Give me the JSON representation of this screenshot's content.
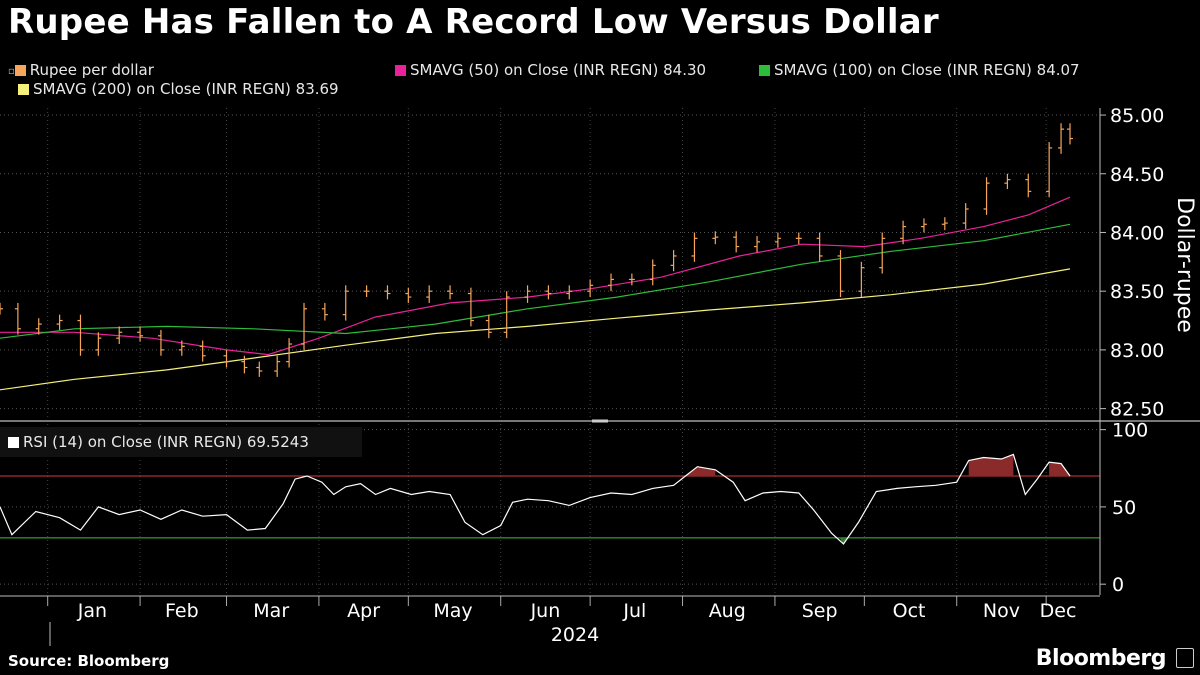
{
  "title": "Rupee Has Fallen to A Record Low Versus Dollar",
  "legend": {
    "price": "Rupee per dollar",
    "sma50": "SMAVG (50)  on Close (INR REGN) 84.30",
    "sma100": "SMAVG (100)  on Close (INR REGN) 84.07",
    "sma200": "SMAVG (200)  on Close (INR REGN) 83.69",
    "rsi": "RSI (14)  on Close (INR REGN) 69.5243"
  },
  "colors": {
    "price": "#f6a55a",
    "sma50": "#e8229a",
    "sma100": "#2dbd3a",
    "sma200": "#f5f07a",
    "rsi": "#ffffff",
    "overbought": "#d63a3a",
    "oversold": "#3fbf3f",
    "overbought_fill": "#8a2a2a"
  },
  "footer": {
    "source": "Source: Bloomberg",
    "brand": "Bloomberg"
  },
  "chart_data": [
    {
      "type": "line",
      "title": "Rupee Has Fallen to A Record Low Versus Dollar",
      "ylabel": "Dollar-rupee",
      "xlabel": "2024",
      "ylim": [
        82.42,
        85.06
      ],
      "yticks": [
        "82.50",
        "83.00",
        "83.50",
        "84.00",
        "84.50",
        "85.00"
      ],
      "xticks": [
        "Jan",
        "Feb",
        "Mar",
        "Apr",
        "May",
        "Jun",
        "Jul",
        "Aug",
        "Sep",
        "Oct",
        "Nov",
        "Dec"
      ],
      "x_start": "2023-12-16",
      "x_end": "2024-12-09",
      "grid": true,
      "legend_position": "top-left",
      "series": [
        {
          "name": "Rupee per dollar",
          "style": "bars",
          "points": [
            [
              "2023-12-16",
              83.35
            ],
            [
              "2023-12-22",
              83.18
            ],
            [
              "2023-12-29",
              83.22
            ],
            [
              "2024-01-05",
              83.25
            ],
            [
              "2024-01-12",
              83.0
            ],
            [
              "2024-01-18",
              83.1
            ],
            [
              "2024-01-25",
              83.15
            ],
            [
              "2024-02-01",
              83.12
            ],
            [
              "2024-02-08",
              83.0
            ],
            [
              "2024-02-15",
              83.03
            ],
            [
              "2024-02-22",
              82.95
            ],
            [
              "2024-03-01",
              82.9
            ],
            [
              "2024-03-07",
              82.85
            ],
            [
              "2024-03-12",
              82.82
            ],
            [
              "2024-03-18",
              82.9
            ],
            [
              "2024-03-22",
              83.05
            ],
            [
              "2024-03-27",
              83.35
            ],
            [
              "2024-04-03",
              83.3
            ],
            [
              "2024-04-10",
              83.5
            ],
            [
              "2024-04-17",
              83.5
            ],
            [
              "2024-04-24",
              83.48
            ],
            [
              "2024-05-01",
              83.45
            ],
            [
              "2024-05-08",
              83.5
            ],
            [
              "2024-05-15",
              83.48
            ],
            [
              "2024-05-22",
              83.25
            ],
            [
              "2024-05-28",
              83.15
            ],
            [
              "2024-06-03",
              83.45
            ],
            [
              "2024-06-10",
              83.5
            ],
            [
              "2024-06-17",
              83.48
            ],
            [
              "2024-06-24",
              83.5
            ],
            [
              "2024-07-01",
              83.55
            ],
            [
              "2024-07-08",
              83.6
            ],
            [
              "2024-07-15",
              83.6
            ],
            [
              "2024-07-22",
              83.72
            ],
            [
              "2024-07-29",
              83.8
            ],
            [
              "2024-08-05",
              83.95
            ],
            [
              "2024-08-12",
              83.96
            ],
            [
              "2024-08-19",
              83.88
            ],
            [
              "2024-08-26",
              83.92
            ],
            [
              "2024-09-02",
              83.95
            ],
            [
              "2024-09-09",
              83.95
            ],
            [
              "2024-09-16",
              83.8
            ],
            [
              "2024-09-23",
              83.5
            ],
            [
              "2024-09-30",
              83.7
            ],
            [
              "2024-10-07",
              83.95
            ],
            [
              "2024-10-14",
              84.05
            ],
            [
              "2024-10-21",
              84.07
            ],
            [
              "2024-10-28",
              84.08
            ],
            [
              "2024-11-04",
              84.2
            ],
            [
              "2024-11-11",
              84.42
            ],
            [
              "2024-11-18",
              84.45
            ],
            [
              "2024-11-25",
              84.35
            ],
            [
              "2024-12-02",
              84.72
            ],
            [
              "2024-12-06",
              84.88
            ],
            [
              "2024-12-09",
              84.8
            ]
          ]
        },
        {
          "name": "SMAVG (50)  on Close (INR REGN) 84.30",
          "points": [
            [
              "2023-12-16",
              83.15
            ],
            [
              "2024-01-10",
              83.15
            ],
            [
              "2024-02-05",
              83.1
            ],
            [
              "2024-03-01",
              83.0
            ],
            [
              "2024-03-15",
              82.96
            ],
            [
              "2024-04-01",
              83.1
            ],
            [
              "2024-04-20",
              83.28
            ],
            [
              "2024-05-15",
              83.4
            ],
            [
              "2024-06-10",
              83.45
            ],
            [
              "2024-07-01",
              83.52
            ],
            [
              "2024-07-25",
              83.62
            ],
            [
              "2024-08-20",
              83.8
            ],
            [
              "2024-09-10",
              83.9
            ],
            [
              "2024-10-01",
              83.88
            ],
            [
              "2024-10-20",
              83.95
            ],
            [
              "2024-11-10",
              84.05
            ],
            [
              "2024-11-25",
              84.15
            ],
            [
              "2024-12-09",
              84.3
            ]
          ]
        },
        {
          "name": "SMAVG (100)  on Close (INR REGN) 84.07",
          "points": [
            [
              "2023-12-16",
              83.1
            ],
            [
              "2024-01-10",
              83.18
            ],
            [
              "2024-02-10",
              83.2
            ],
            [
              "2024-03-10",
              83.18
            ],
            [
              "2024-04-10",
              83.14
            ],
            [
              "2024-05-10",
              83.22
            ],
            [
              "2024-06-10",
              83.35
            ],
            [
              "2024-07-10",
              83.45
            ],
            [
              "2024-08-10",
              83.58
            ],
            [
              "2024-09-10",
              83.73
            ],
            [
              "2024-10-10",
              83.84
            ],
            [
              "2024-11-10",
              83.93
            ],
            [
              "2024-12-09",
              84.07
            ]
          ]
        },
        {
          "name": "SMAVG (200)  on Close (INR REGN) 83.69",
          "points": [
            [
              "2023-12-16",
              82.66
            ],
            [
              "2024-01-10",
              82.75
            ],
            [
              "2024-02-10",
              82.83
            ],
            [
              "2024-03-10",
              82.93
            ],
            [
              "2024-04-10",
              83.04
            ],
            [
              "2024-05-10",
              83.14
            ],
            [
              "2024-06-10",
              83.2
            ],
            [
              "2024-07-10",
              83.27
            ],
            [
              "2024-08-10",
              83.34
            ],
            [
              "2024-09-10",
              83.4
            ],
            [
              "2024-10-10",
              83.47
            ],
            [
              "2024-11-10",
              83.56
            ],
            [
              "2024-12-09",
              83.69
            ]
          ]
        }
      ]
    },
    {
      "type": "line",
      "title": "RSI (14)  on Close (INR REGN) 69.5243",
      "ylim": [
        -7,
        103
      ],
      "yticks": [
        "0",
        "50",
        "100"
      ],
      "x_start": "2023-12-16",
      "x_end": "2024-12-09",
      "reference_lines": [
        70,
        30
      ],
      "series": [
        {
          "name": "RSI (14)  on Close (INR REGN) 69.5243",
          "points": [
            [
              "2023-12-16",
              50
            ],
            [
              "2023-12-20",
              32
            ],
            [
              "2023-12-28",
              47
            ],
            [
              "2024-01-05",
              43
            ],
            [
              "2024-01-12",
              35
            ],
            [
              "2024-01-18",
              50
            ],
            [
              "2024-01-25",
              45
            ],
            [
              "2024-02-01",
              48
            ],
            [
              "2024-02-08",
              42
            ],
            [
              "2024-02-15",
              48
            ],
            [
              "2024-02-22",
              44
            ],
            [
              "2024-03-01",
              45
            ],
            [
              "2024-03-08",
              35
            ],
            [
              "2024-03-14",
              36
            ],
            [
              "2024-03-20",
              52
            ],
            [
              "2024-03-24",
              68
            ],
            [
              "2024-03-28",
              70
            ],
            [
              "2024-04-02",
              66
            ],
            [
              "2024-04-06",
              58
            ],
            [
              "2024-04-10",
              63
            ],
            [
              "2024-04-15",
              65
            ],
            [
              "2024-04-20",
              58
            ],
            [
              "2024-04-25",
              62
            ],
            [
              "2024-05-02",
              58
            ],
            [
              "2024-05-08",
              60
            ],
            [
              "2024-05-15",
              58
            ],
            [
              "2024-05-20",
              40
            ],
            [
              "2024-05-26",
              32
            ],
            [
              "2024-06-01",
              38
            ],
            [
              "2024-06-05",
              53
            ],
            [
              "2024-06-10",
              55
            ],
            [
              "2024-06-17",
              54
            ],
            [
              "2024-06-24",
              51
            ],
            [
              "2024-07-01",
              56
            ],
            [
              "2024-07-08",
              59
            ],
            [
              "2024-07-15",
              58
            ],
            [
              "2024-07-22",
              62
            ],
            [
              "2024-07-29",
              64
            ],
            [
              "2024-08-02",
              70
            ],
            [
              "2024-08-06",
              76
            ],
            [
              "2024-08-12",
              74
            ],
            [
              "2024-08-18",
              66
            ],
            [
              "2024-08-22",
              54
            ],
            [
              "2024-08-28",
              59
            ],
            [
              "2024-09-03",
              60
            ],
            [
              "2024-09-09",
              59
            ],
            [
              "2024-09-14",
              48
            ],
            [
              "2024-09-20",
              33
            ],
            [
              "2024-09-24",
              26
            ],
            [
              "2024-09-29",
              40
            ],
            [
              "2024-10-05",
              60
            ],
            [
              "2024-10-12",
              62
            ],
            [
              "2024-10-18",
              63
            ],
            [
              "2024-10-25",
              64
            ],
            [
              "2024-11-01",
              66
            ],
            [
              "2024-11-05",
              80
            ],
            [
              "2024-11-10",
              82
            ],
            [
              "2024-11-16",
              81
            ],
            [
              "2024-11-20",
              84
            ],
            [
              "2024-11-24",
              58
            ],
            [
              "2024-11-28",
              68
            ],
            [
              "2024-12-02",
              79
            ],
            [
              "2024-12-06",
              78
            ],
            [
              "2024-12-09",
              70
            ]
          ]
        }
      ]
    }
  ]
}
